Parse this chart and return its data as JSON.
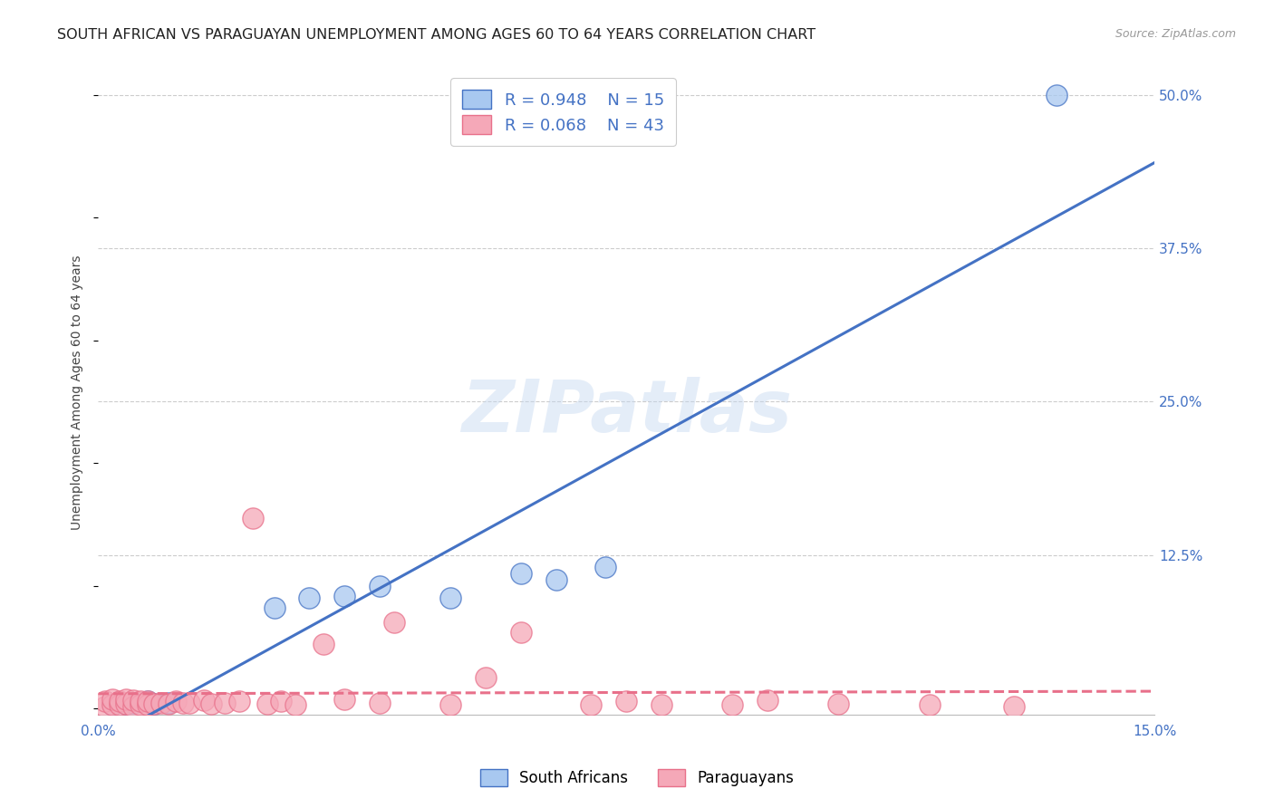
{
  "title": "SOUTH AFRICAN VS PARAGUAYAN UNEMPLOYMENT AMONG AGES 60 TO 64 YEARS CORRELATION CHART",
  "source": "Source: ZipAtlas.com",
  "ylabel": "Unemployment Among Ages 60 to 64 years",
  "xlim": [
    0.0,
    0.15
  ],
  "ylim": [
    -0.005,
    0.52
  ],
  "xticks": [
    0.0,
    0.03,
    0.06,
    0.09,
    0.12,
    0.15
  ],
  "xticklabels": [
    "0.0%",
    "",
    "",
    "",
    "",
    "15.0%"
  ],
  "yticks_right": [
    0.0,
    0.125,
    0.25,
    0.375,
    0.5
  ],
  "ytick_labels_right": [
    "",
    "12.5%",
    "25.0%",
    "37.5%",
    "50.0%"
  ],
  "watermark": "ZIPatlas",
  "blue_R": "R = 0.948",
  "blue_N": "N = 15",
  "pink_R": "R = 0.068",
  "pink_N": "N = 43",
  "blue_color": "#A8C8F0",
  "pink_color": "#F5A8B8",
  "blue_line_color": "#4472C4",
  "pink_line_color": "#E8708A",
  "background_color": "#FFFFFF",
  "grid_color": "#CCCCCC",
  "south_african_x": [
    0.002,
    0.004,
    0.005,
    0.007,
    0.008,
    0.01,
    0.025,
    0.03,
    0.035,
    0.04,
    0.05,
    0.06,
    0.065,
    0.072,
    0.136
  ],
  "south_african_y": [
    0.003,
    0.004,
    0.005,
    0.006,
    0.004,
    0.005,
    0.082,
    0.09,
    0.092,
    0.1,
    0.09,
    0.11,
    0.105,
    0.115,
    0.5
  ],
  "paraguayan_x": [
    0.001,
    0.001,
    0.002,
    0.002,
    0.003,
    0.003,
    0.004,
    0.004,
    0.005,
    0.005,
    0.006,
    0.006,
    0.007,
    0.007,
    0.008,
    0.009,
    0.01,
    0.011,
    0.012,
    0.013,
    0.015,
    0.016,
    0.018,
    0.02,
    0.022,
    0.024,
    0.026,
    0.028,
    0.032,
    0.035,
    0.04,
    0.042,
    0.05,
    0.055,
    0.06,
    0.07,
    0.075,
    0.08,
    0.09,
    0.095,
    0.105,
    0.118,
    0.13
  ],
  "paraguayan_y": [
    0.002,
    0.006,
    0.003,
    0.008,
    0.003,
    0.006,
    0.004,
    0.008,
    0.002,
    0.007,
    0.003,
    0.006,
    0.003,
    0.006,
    0.004,
    0.005,
    0.004,
    0.006,
    0.005,
    0.005,
    0.007,
    0.004,
    0.005,
    0.006,
    0.155,
    0.004,
    0.006,
    0.003,
    0.053,
    0.008,
    0.005,
    0.07,
    0.003,
    0.025,
    0.062,
    0.003,
    0.006,
    0.003,
    0.003,
    0.007,
    0.004,
    0.003,
    0.002
  ],
  "legend_label_blue": "South Africans",
  "legend_label_pink": "Paraguayans",
  "title_fontsize": 11.5,
  "axis_label_fontsize": 10,
  "tick_fontsize": 11
}
